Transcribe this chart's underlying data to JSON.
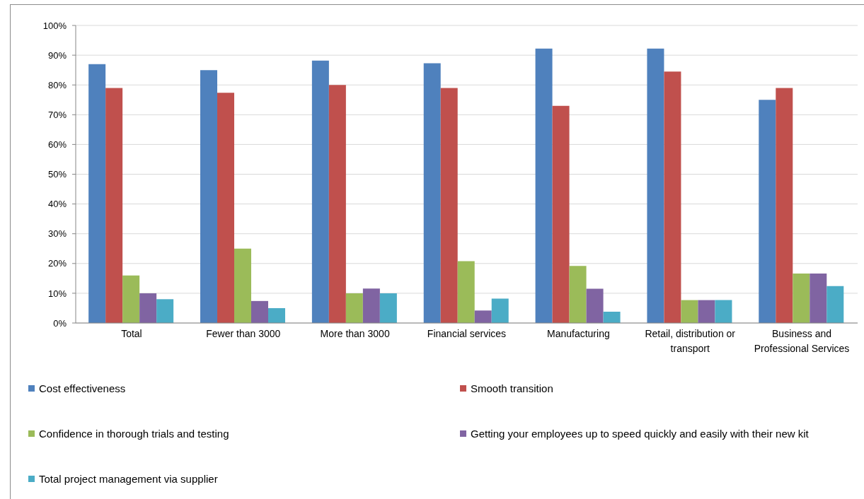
{
  "chart_data": {
    "type": "bar",
    "categories": [
      "Total",
      "Fewer than 3000",
      "More than 3000",
      "Financial services",
      "Manufacturing",
      "Retail, distribution or transport",
      "Business and Professional Services"
    ],
    "series": [
      {
        "name": "Cost effectiveness",
        "color": "#4f81bd",
        "values": [
          87,
          85,
          88.2,
          87.3,
          92.2,
          92.2,
          75
        ]
      },
      {
        "name": "Smooth transition",
        "color": "#c0504d",
        "values": [
          79,
          77.4,
          80,
          79,
          73,
          84.5,
          79
        ]
      },
      {
        "name": "Confidence in thorough trials and testing",
        "color": "#9bbb59",
        "values": [
          16,
          25,
          10,
          20.8,
          19.2,
          7.7,
          16.6
        ]
      },
      {
        "name": "Getting your employees up to speed quickly and easily with their new kit",
        "color": "#8064a2",
        "values": [
          10,
          7.4,
          11.6,
          4.2,
          11.5,
          7.7,
          16.6
        ]
      },
      {
        "name": "Total project management via supplier",
        "color": "#4bacc6",
        "values": [
          8,
          5,
          10,
          8.2,
          3.8,
          7.7,
          12.4
        ]
      }
    ],
    "ylim": [
      0,
      100
    ],
    "yticks": [
      {
        "value": 0,
        "label": "0%"
      },
      {
        "value": 10,
        "label": "10%"
      },
      {
        "value": 20,
        "label": "20%"
      },
      {
        "value": 30,
        "label": "30%"
      },
      {
        "value": 40,
        "label": "40%"
      },
      {
        "value": 50,
        "label": "50%"
      },
      {
        "value": 60,
        "label": "60%"
      },
      {
        "value": 70,
        "label": "70%"
      },
      {
        "value": 80,
        "label": "80%"
      },
      {
        "value": 90,
        "label": "90%"
      },
      {
        "value": 100,
        "label": "100%"
      }
    ],
    "grid": "y",
    "legend": "bottom"
  }
}
